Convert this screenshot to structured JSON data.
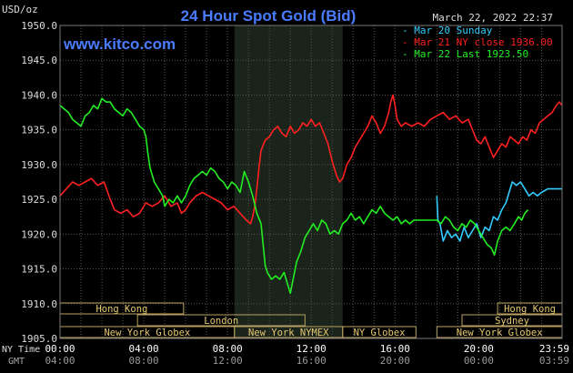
{
  "chart_data": {
    "type": "line",
    "title": "24 Hour Spot Gold (Bid)",
    "ylabel": "USD/oz",
    "website": "www.kitco.com",
    "timestamp": "March 22, 2022 22:37",
    "ylim": [
      1905,
      1950
    ],
    "y_ticks": [
      "1950.0",
      "1945.0",
      "1940.0",
      "1935.0",
      "1930.0",
      "1925.0",
      "1920.0",
      "1915.0",
      "1910.0",
      "1905.0"
    ],
    "x_label_nytime": "NY Time",
    "x_label_gmt": "GMT",
    "x_ticks_ny": [
      "00:00",
      "04:00",
      "08:00",
      "12:00",
      "16:00",
      "20:00",
      "23:59"
    ],
    "x_ticks_gmt": [
      "04:00",
      "08:00",
      "12:00",
      "16:00",
      "20:00",
      "00:00",
      "03:59"
    ],
    "legend": [
      {
        "label": "Mar 20 Sunday",
        "color": "#33ccff"
      },
      {
        "label": "Mar 21 NY close 1936.00",
        "color": "#ff2020"
      },
      {
        "label": "Mar 22 Last 1923.50",
        "color": "#22ee22"
      }
    ],
    "sessions": {
      "hong_kong_1": "Hong Kong",
      "london": "London",
      "new_york_globex_1": "New York Globex",
      "new_york_nymex": "New York NYMEX",
      "ny_globex": "NY Globex",
      "hong_kong_2": "Hong Kong",
      "sydney": "Sydney",
      "new_york_globex_2": "New York Globex"
    },
    "series": [
      {
        "name": "Mar 20 Sunday",
        "color": "#33ccff",
        "points": [
          [
            18.0,
            1925.5
          ],
          [
            18.05,
            1922.0
          ],
          [
            18.15,
            1921.5
          ],
          [
            18.3,
            1919.0
          ],
          [
            18.5,
            1920.5
          ],
          [
            18.7,
            1919.5
          ],
          [
            18.9,
            1920.0
          ],
          [
            19.1,
            1919.0
          ],
          [
            19.3,
            1921.0
          ],
          [
            19.5,
            1919.5
          ],
          [
            19.7,
            1920.5
          ],
          [
            19.9,
            1921.5
          ],
          [
            20.1,
            1919.5
          ],
          [
            20.3,
            1921.0
          ],
          [
            20.5,
            1920.5
          ],
          [
            20.7,
            1922.5
          ],
          [
            20.9,
            1922.0
          ],
          [
            21.1,
            1923.5
          ],
          [
            21.3,
            1924.5
          ],
          [
            21.5,
            1926.5
          ],
          [
            21.6,
            1927.5
          ],
          [
            21.8,
            1927.0
          ],
          [
            22.0,
            1927.5
          ],
          [
            22.2,
            1926.5
          ],
          [
            22.4,
            1925.5
          ],
          [
            22.6,
            1926.0
          ],
          [
            22.8,
            1925.5
          ],
          [
            23.0,
            1926.0
          ],
          [
            23.3,
            1926.5
          ],
          [
            23.6,
            1926.5
          ],
          [
            23.98,
            1926.5
          ]
        ]
      },
      {
        "name": "Mar 21 NY close 1936.00",
        "color": "#ff2020",
        "points": [
          [
            0.0,
            1925.5
          ],
          [
            0.3,
            1926.5
          ],
          [
            0.6,
            1927.5
          ],
          [
            0.9,
            1927.0
          ],
          [
            1.2,
            1927.5
          ],
          [
            1.5,
            1928.0
          ],
          [
            1.8,
            1927.0
          ],
          [
            2.1,
            1927.5
          ],
          [
            2.4,
            1925.0
          ],
          [
            2.6,
            1923.5
          ],
          [
            2.9,
            1923.0
          ],
          [
            3.2,
            1923.5
          ],
          [
            3.5,
            1922.5
          ],
          [
            3.8,
            1923.0
          ],
          [
            4.1,
            1924.5
          ],
          [
            4.4,
            1924.0
          ],
          [
            4.7,
            1924.5
          ],
          [
            5.0,
            1925.5
          ],
          [
            5.3,
            1924.0
          ],
          [
            5.6,
            1924.5
          ],
          [
            5.8,
            1923.0
          ],
          [
            6.0,
            1923.5
          ],
          [
            6.2,
            1924.5
          ],
          [
            6.5,
            1925.5
          ],
          [
            6.8,
            1926.0
          ],
          [
            7.1,
            1925.5
          ],
          [
            7.4,
            1925.0
          ],
          [
            7.7,
            1924.5
          ],
          [
            8.0,
            1923.5
          ],
          [
            8.3,
            1924.0
          ],
          [
            8.6,
            1923.0
          ],
          [
            8.9,
            1922.0
          ],
          [
            9.1,
            1921.5
          ],
          [
            9.2,
            1922.5
          ],
          [
            9.3,
            1924.0
          ],
          [
            9.4,
            1926.5
          ],
          [
            9.5,
            1929.5
          ],
          [
            9.6,
            1932.0
          ],
          [
            9.8,
            1933.5
          ],
          [
            10.0,
            1934.0
          ],
          [
            10.2,
            1935.0
          ],
          [
            10.4,
            1935.5
          ],
          [
            10.6,
            1934.5
          ],
          [
            10.8,
            1934.0
          ],
          [
            11.0,
            1935.5
          ],
          [
            11.2,
            1934.5
          ],
          [
            11.4,
            1935.0
          ],
          [
            11.6,
            1936.0
          ],
          [
            11.8,
            1935.5
          ],
          [
            12.0,
            1936.5
          ],
          [
            12.2,
            1935.5
          ],
          [
            12.4,
            1936.0
          ],
          [
            12.6,
            1934.5
          ],
          [
            12.8,
            1933.0
          ],
          [
            13.0,
            1930.5
          ],
          [
            13.2,
            1928.5
          ],
          [
            13.35,
            1927.5
          ],
          [
            13.5,
            1928.0
          ],
          [
            13.7,
            1930.0
          ],
          [
            13.9,
            1931.0
          ],
          [
            14.1,
            1932.5
          ],
          [
            14.3,
            1933.5
          ],
          [
            14.5,
            1934.5
          ],
          [
            14.7,
            1935.5
          ],
          [
            14.9,
            1937.0
          ],
          [
            15.1,
            1936.0
          ],
          [
            15.3,
            1934.5
          ],
          [
            15.5,
            1935.5
          ],
          [
            15.7,
            1937.5
          ],
          [
            15.8,
            1939.0
          ],
          [
            15.9,
            1940.0
          ],
          [
            16.0,
            1938.5
          ],
          [
            16.1,
            1936.5
          ],
          [
            16.3,
            1935.5
          ],
          [
            16.5,
            1936.0
          ],
          [
            16.8,
            1935.5
          ],
          [
            17.1,
            1936.0
          ],
          [
            17.4,
            1935.5
          ],
          [
            17.7,
            1936.5
          ],
          [
            18.0,
            1937.0
          ],
          [
            18.3,
            1937.5
          ],
          [
            18.6,
            1936.5
          ],
          [
            18.9,
            1937.0
          ],
          [
            19.2,
            1936.0
          ],
          [
            19.5,
            1936.5
          ],
          [
            19.7,
            1935.0
          ],
          [
            19.9,
            1933.5
          ],
          [
            20.1,
            1933.0
          ],
          [
            20.3,
            1934.0
          ],
          [
            20.5,
            1932.5
          ],
          [
            20.7,
            1931.0
          ],
          [
            20.9,
            1932.0
          ],
          [
            21.1,
            1933.0
          ],
          [
            21.3,
            1932.5
          ],
          [
            21.5,
            1934.0
          ],
          [
            21.7,
            1933.5
          ],
          [
            21.9,
            1933.0
          ],
          [
            22.1,
            1934.0
          ],
          [
            22.3,
            1933.5
          ],
          [
            22.5,
            1935.0
          ],
          [
            22.7,
            1934.5
          ],
          [
            22.9,
            1936.0
          ],
          [
            23.1,
            1936.5
          ],
          [
            23.3,
            1937.0
          ],
          [
            23.5,
            1937.5
          ],
          [
            23.7,
            1938.5
          ],
          [
            23.85,
            1939.0
          ],
          [
            23.98,
            1938.5
          ]
        ]
      },
      {
        "name": "Mar 22 Last 1923.50",
        "color": "#22ee22",
        "points": [
          [
            0.0,
            1938.5
          ],
          [
            0.2,
            1938.0
          ],
          [
            0.4,
            1937.5
          ],
          [
            0.6,
            1936.5
          ],
          [
            0.8,
            1936.0
          ],
          [
            1.0,
            1935.5
          ],
          [
            1.2,
            1937.0
          ],
          [
            1.4,
            1937.5
          ],
          [
            1.6,
            1938.5
          ],
          [
            1.8,
            1938.0
          ],
          [
            2.0,
            1939.5
          ],
          [
            2.2,
            1939.0
          ],
          [
            2.4,
            1939.0
          ],
          [
            2.6,
            1938.0
          ],
          [
            2.8,
            1937.5
          ],
          [
            3.0,
            1937.0
          ],
          [
            3.2,
            1938.0
          ],
          [
            3.4,
            1937.5
          ],
          [
            3.6,
            1936.5
          ],
          [
            3.8,
            1935.5
          ],
          [
            4.0,
            1935.0
          ],
          [
            4.1,
            1934.0
          ],
          [
            4.2,
            1931.5
          ],
          [
            4.3,
            1929.5
          ],
          [
            4.4,
            1928.5
          ],
          [
            4.5,
            1927.5
          ],
          [
            4.7,
            1926.5
          ],
          [
            4.9,
            1925.5
          ],
          [
            5.0,
            1924.0
          ],
          [
            5.2,
            1925.0
          ],
          [
            5.4,
            1924.5
          ],
          [
            5.6,
            1925.5
          ],
          [
            5.8,
            1924.5
          ],
          [
            6.0,
            1925.5
          ],
          [
            6.2,
            1927.0
          ],
          [
            6.4,
            1928.0
          ],
          [
            6.6,
            1928.5
          ],
          [
            6.8,
            1929.0
          ],
          [
            7.0,
            1928.5
          ],
          [
            7.2,
            1929.5
          ],
          [
            7.4,
            1929.0
          ],
          [
            7.6,
            1928.0
          ],
          [
            7.8,
            1927.5
          ],
          [
            8.0,
            1926.5
          ],
          [
            8.2,
            1927.5
          ],
          [
            8.4,
            1927.0
          ],
          [
            8.6,
            1926.0
          ],
          [
            8.8,
            1929.0
          ],
          [
            9.0,
            1927.5
          ],
          [
            9.2,
            1925.5
          ],
          [
            9.4,
            1923.0
          ],
          [
            9.6,
            1921.5
          ],
          [
            9.7,
            1918.5
          ],
          [
            9.8,
            1915.5
          ],
          [
            9.9,
            1914.5
          ],
          [
            10.1,
            1913.5
          ],
          [
            10.3,
            1914.0
          ],
          [
            10.5,
            1913.5
          ],
          [
            10.7,
            1914.5
          ],
          [
            10.9,
            1912.5
          ],
          [
            11.0,
            1911.5
          ],
          [
            11.1,
            1913.0
          ],
          [
            11.3,
            1916.0
          ],
          [
            11.5,
            1917.5
          ],
          [
            11.7,
            1919.5
          ],
          [
            11.9,
            1920.5
          ],
          [
            12.1,
            1921.5
          ],
          [
            12.3,
            1920.5
          ],
          [
            12.5,
            1922.0
          ],
          [
            12.7,
            1921.5
          ],
          [
            12.9,
            1920.0
          ],
          [
            13.1,
            1920.5
          ],
          [
            13.3,
            1920.0
          ],
          [
            13.5,
            1921.5
          ],
          [
            13.7,
            1922.0
          ],
          [
            13.9,
            1923.0
          ],
          [
            14.1,
            1922.0
          ],
          [
            14.3,
            1922.5
          ],
          [
            14.5,
            1921.5
          ],
          [
            14.7,
            1922.5
          ],
          [
            14.9,
            1923.5
          ],
          [
            15.1,
            1923.0
          ],
          [
            15.3,
            1924.0
          ],
          [
            15.5,
            1923.0
          ],
          [
            15.7,
            1922.5
          ],
          [
            15.9,
            1922.0
          ],
          [
            16.1,
            1922.5
          ],
          [
            16.3,
            1921.5
          ],
          [
            16.5,
            1922.0
          ],
          [
            16.7,
            1921.5
          ],
          [
            16.9,
            1922.0
          ],
          [
            17.5,
            1922.0
          ],
          [
            18.0,
            1922.0
          ],
          [
            18.2,
            1921.5
          ],
          [
            18.4,
            1922.5
          ],
          [
            18.6,
            1922.0
          ],
          [
            18.8,
            1921.0
          ],
          [
            19.0,
            1920.5
          ],
          [
            19.2,
            1921.5
          ],
          [
            19.4,
            1921.0
          ],
          [
            19.6,
            1922.0
          ],
          [
            19.8,
            1921.5
          ],
          [
            20.0,
            1920.5
          ],
          [
            20.2,
            1919.5
          ],
          [
            20.4,
            1918.5
          ],
          [
            20.6,
            1918.0
          ],
          [
            20.75,
            1917.0
          ],
          [
            20.9,
            1919.0
          ],
          [
            21.1,
            1920.5
          ],
          [
            21.3,
            1921.0
          ],
          [
            21.5,
            1920.5
          ],
          [
            21.7,
            1921.5
          ],
          [
            21.9,
            1922.5
          ],
          [
            22.05,
            1922.0
          ],
          [
            22.2,
            1923.0
          ],
          [
            22.35,
            1923.5
          ]
        ]
      }
    ]
  }
}
